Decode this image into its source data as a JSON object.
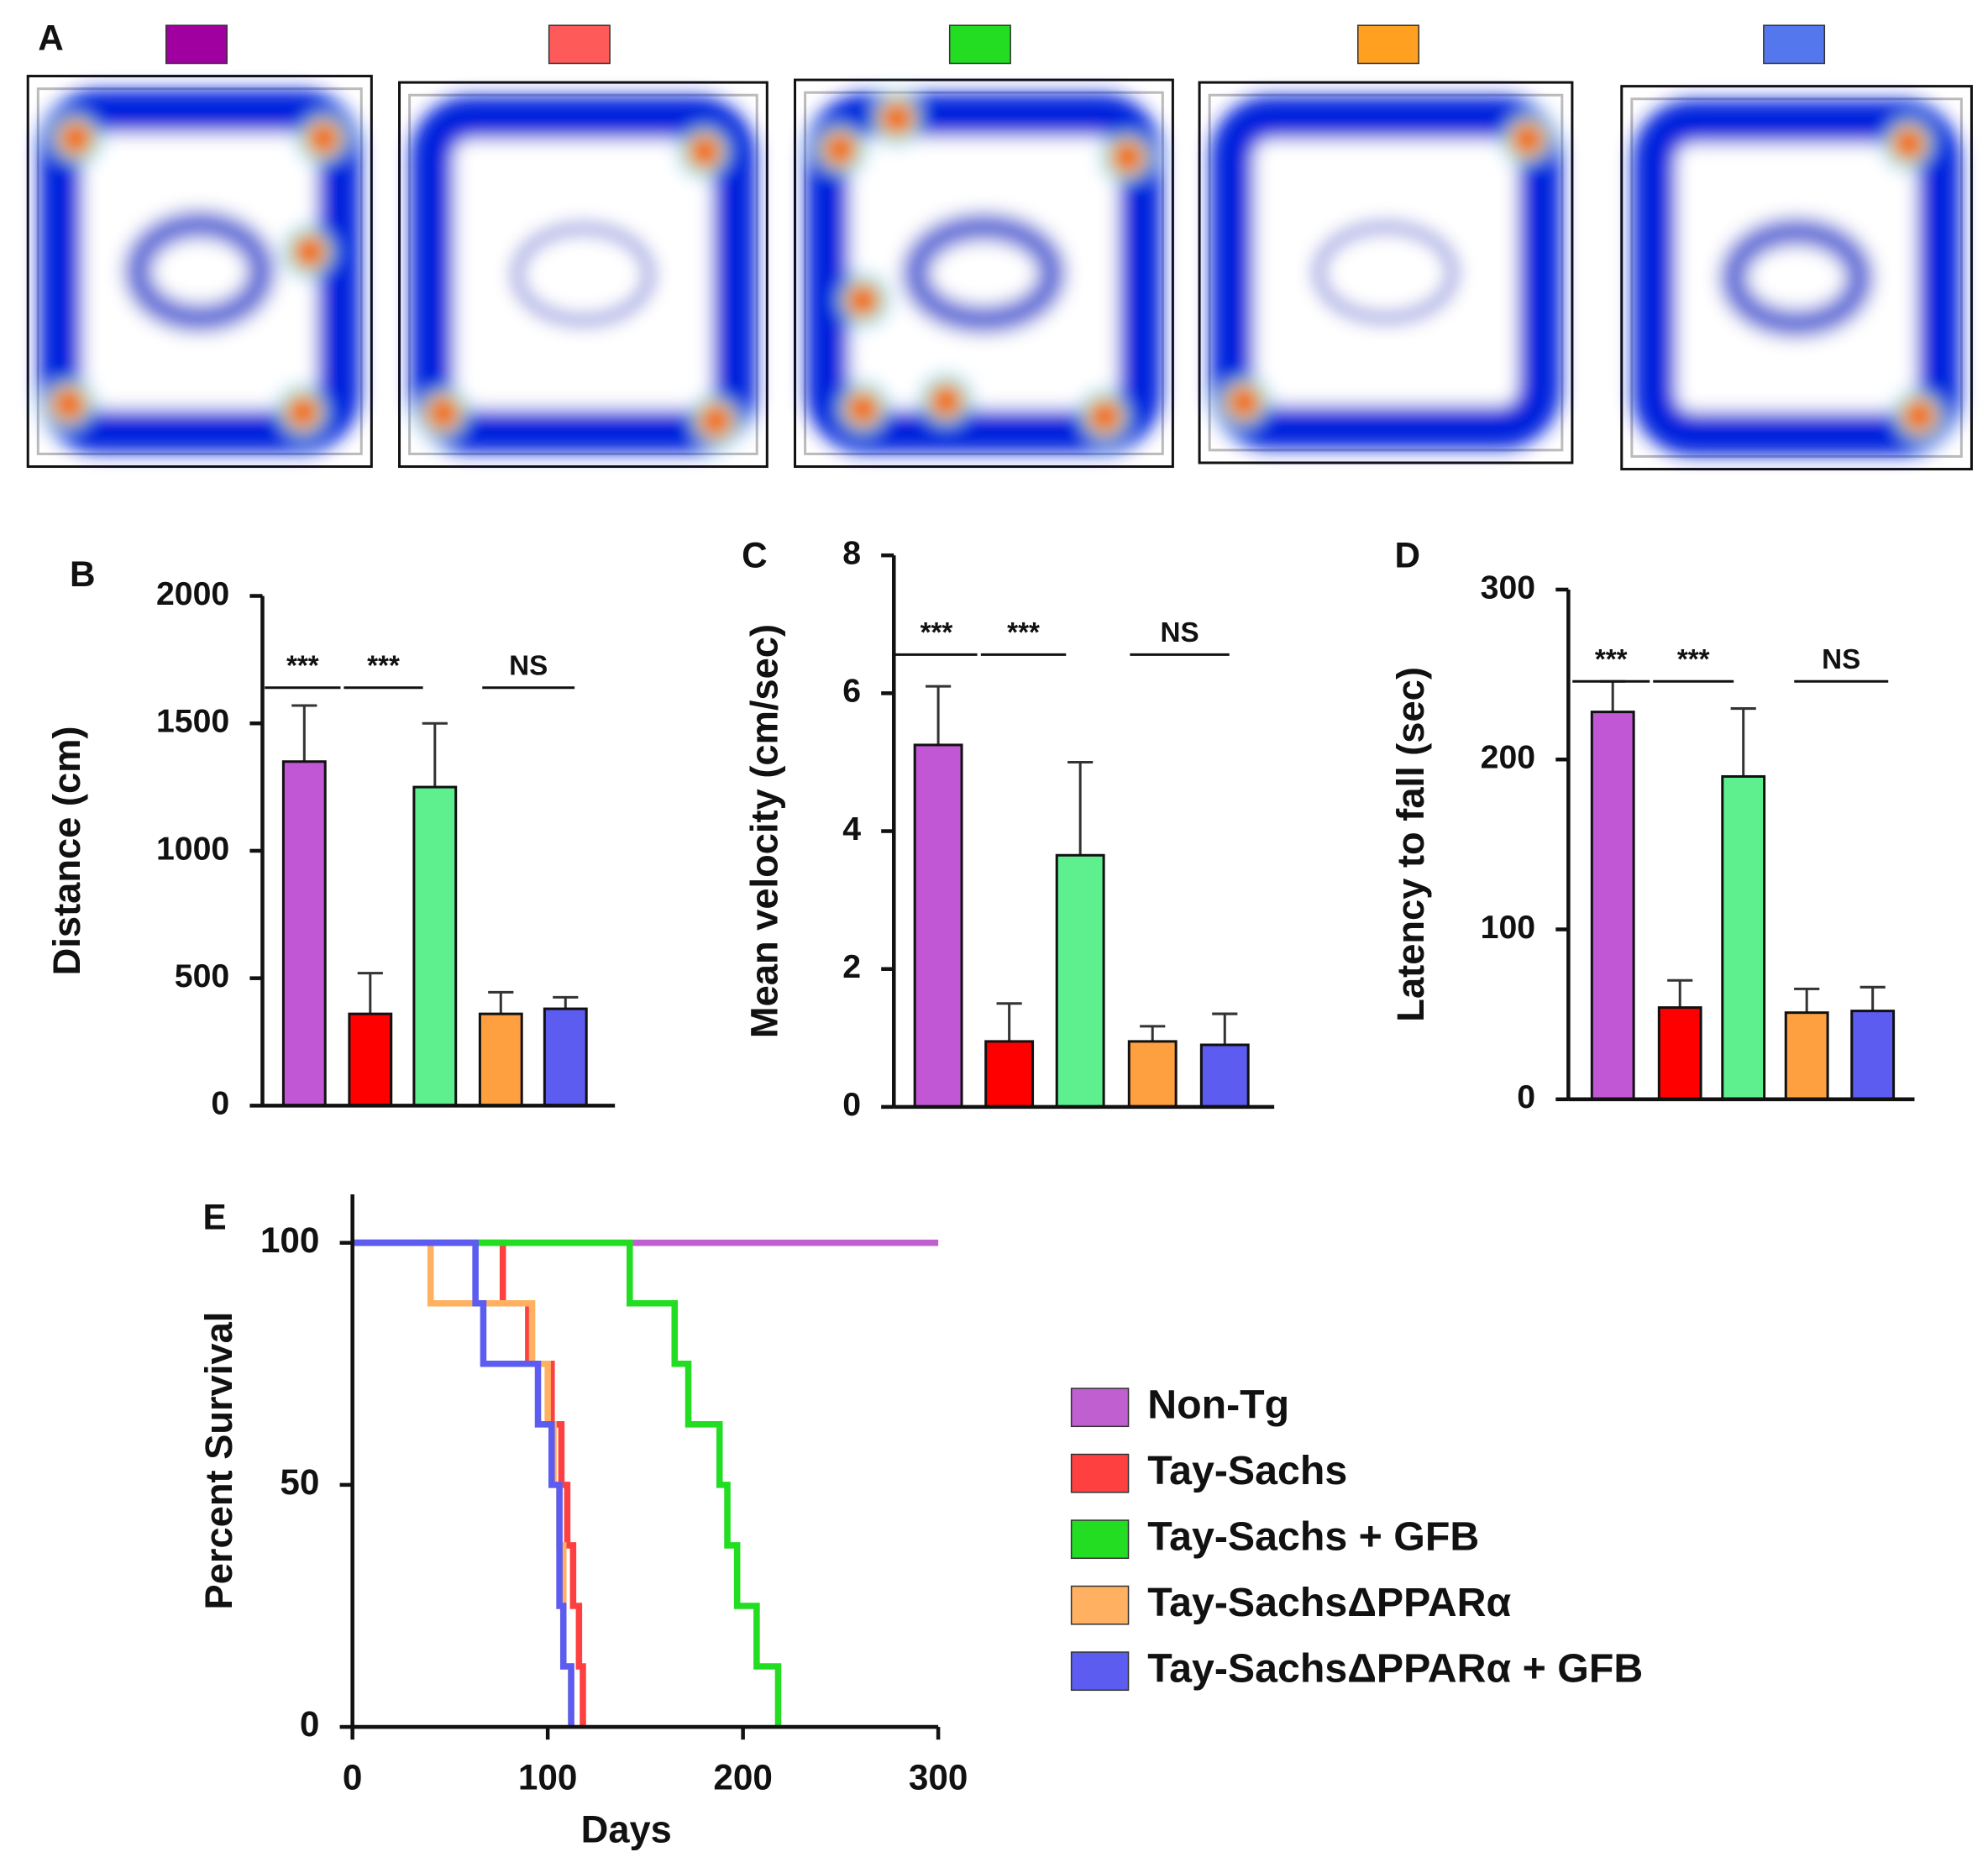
{
  "heatmap_panel": {
    "label": "A"
  },
  "chart_data": [
    {
      "type": "bar",
      "panel": "B",
      "ylabel": "Distance (cm)",
      "categories": [
        null,
        null,
        null,
        null,
        null
      ],
      "values": [
        1350,
        360,
        1250,
        360,
        380
      ],
      "errors": [
        220,
        160,
        250,
        85,
        45
      ],
      "colors": [
        "#c257d6",
        "#ff0000",
        "#5ef08f",
        "#ffa040",
        "#5c5cf0"
      ],
      "ylim": [
        0,
        2000
      ],
      "yticks": [
        0,
        500,
        1000,
        1500,
        2000
      ],
      "annotations": [
        "***",
        "***",
        "NS"
      ]
    },
    {
      "type": "bar",
      "panel": "C",
      "ylabel": "Mean velocity (cm/sec)",
      "categories": [
        null,
        null,
        null,
        null,
        null
      ],
      "values": [
        5.25,
        0.95,
        3.65,
        0.95,
        0.9
      ],
      "errors": [
        0.85,
        0.55,
        1.35,
        0.22,
        0.45
      ],
      "colors": [
        "#c257d6",
        "#ff0000",
        "#5ef08f",
        "#ffa040",
        "#5c5cf0"
      ],
      "ylim": [
        0,
        8
      ],
      "yticks": [
        0,
        2,
        4,
        6,
        8
      ],
      "annotations": [
        "***",
        "***",
        "NS"
      ]
    },
    {
      "type": "bar",
      "panel": "D",
      "ylabel": "Latency to fall (sec)",
      "categories": [
        null,
        null,
        null,
        null,
        null
      ],
      "values": [
        228,
        54,
        190,
        51,
        52
      ],
      "errors": [
        18,
        16,
        40,
        14,
        14
      ],
      "colors": [
        "#c257d6",
        "#ff0000",
        "#5ef08f",
        "#ffa040",
        "#5c5cf0"
      ],
      "ylim": [
        0,
        300
      ],
      "yticks": [
        0,
        100,
        200,
        300
      ],
      "annotations": [
        "***",
        "***",
        "NS"
      ]
    },
    {
      "type": "step",
      "panel": "E",
      "xlabel": "Days",
      "ylabel": "Percent Survival",
      "xlim": [
        0,
        300
      ],
      "xticks": [
        0,
        100,
        200,
        300
      ],
      "ylim": [
        0,
        110
      ],
      "yticks": [
        0,
        50,
        100
      ],
      "series": [
        {
          "name": "Non-Tg",
          "color": "#c060d0",
          "x": [
            0,
            300
          ],
          "values": [
            100,
            100
          ]
        },
        {
          "name": "Tay-Sachs",
          "color": "#ff4040",
          "x": [
            0,
            77,
            90,
            102,
            107,
            110,
            113,
            116,
            118
          ],
          "values": [
            100,
            87.5,
            75,
            62.5,
            50,
            37.5,
            25,
            12.5,
            0
          ]
        },
        {
          "name": "Tay-Sachs + GFB",
          "color": "#22dd22",
          "x": [
            0,
            142,
            165,
            172,
            188,
            192,
            197,
            207,
            218
          ],
          "values": [
            100,
            87.5,
            75,
            62.5,
            50,
            37.5,
            25,
            12.5,
            0
          ]
        },
        {
          "name": "Tay-SachsΔPPARα",
          "color": "#ffb060",
          "x": [
            0,
            40,
            92,
            100,
            103,
            106,
            108,
            112
          ],
          "values": [
            100,
            87.5,
            75,
            62.5,
            50,
            37.5,
            12.5,
            0
          ]
        },
        {
          "name": "Tay-SachsΔPPARα + GFB",
          "color": "#5c5cf0",
          "x": [
            0,
            63,
            67,
            95,
            102,
            106,
            108,
            112
          ],
          "values": [
            100,
            87.5,
            75,
            62.5,
            50,
            25,
            12.5,
            0
          ]
        }
      ]
    }
  ]
}
